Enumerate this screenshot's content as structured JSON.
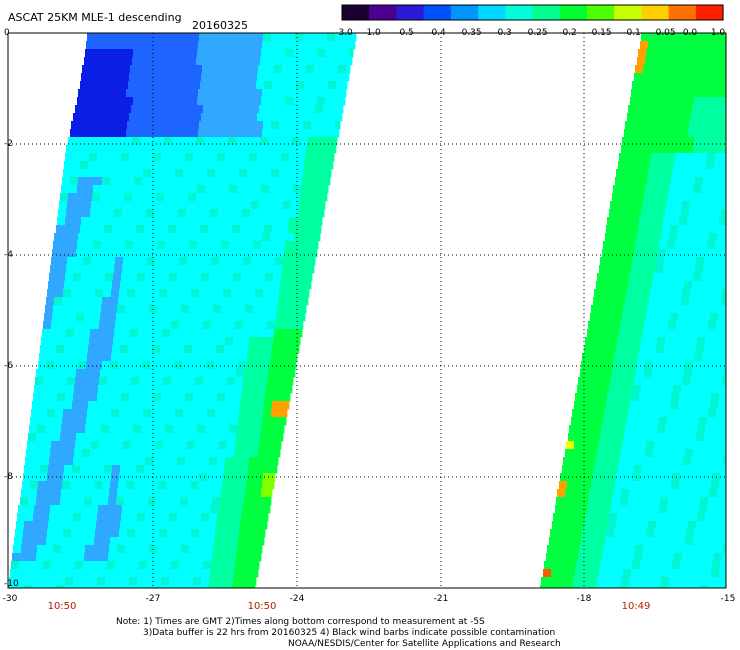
{
  "title": "ASCAT 25KM MLE-1 descending",
  "date": "20160325",
  "colorbar": {
    "labels": [
      "-3.0",
      "-1.0",
      "-0.5",
      "-0.4",
      "-0.35",
      "-0.3",
      "-0.25",
      "-0.2",
      "-0.15",
      "-0.1",
      "-0.05",
      "0.0",
      "1.0"
    ],
    "colors": [
      "#1a0030",
      "#4b0090",
      "#2a1ad8",
      "#0050ff",
      "#0095ff",
      "#00d8ff",
      "#00ffd8",
      "#00ff90",
      "#00ff30",
      "#50ff00",
      "#c8ff00",
      "#ffd000",
      "#ff7000",
      "#ff2000"
    ]
  },
  "y_labels": [
    "0",
    "-2",
    "-4",
    "-6",
    "-8",
    "-10"
  ],
  "x_labels": [
    "-30",
    "-27",
    "-24",
    "-21",
    "-18",
    "-15"
  ],
  "times": [
    "10:50",
    "10:50",
    "10:49"
  ],
  "notes": {
    "line1": "Note: 1) Times are GMT 2)Times along bottom correspond to measurement at -5S",
    "line2": "3)Data buffer is 22 hrs from 20160325 4) Black wind barbs indicate possible contamination",
    "line3": "NOAA/NESDIS/Center for Satellite Applications and Research"
  },
  "palette": {
    "deep_blue": "#0a1ee6",
    "blue": "#1e64ff",
    "light_blue": "#30a8ff",
    "cyan": "#00ffff",
    "teal": "#00f5d0",
    "aqua_green": "#00ffa0",
    "green": "#00ff40",
    "yellow_green": "#80ff00",
    "yellow": "#f0ff00",
    "orange": "#ffa000",
    "red_orange": "#ff5a00"
  }
}
